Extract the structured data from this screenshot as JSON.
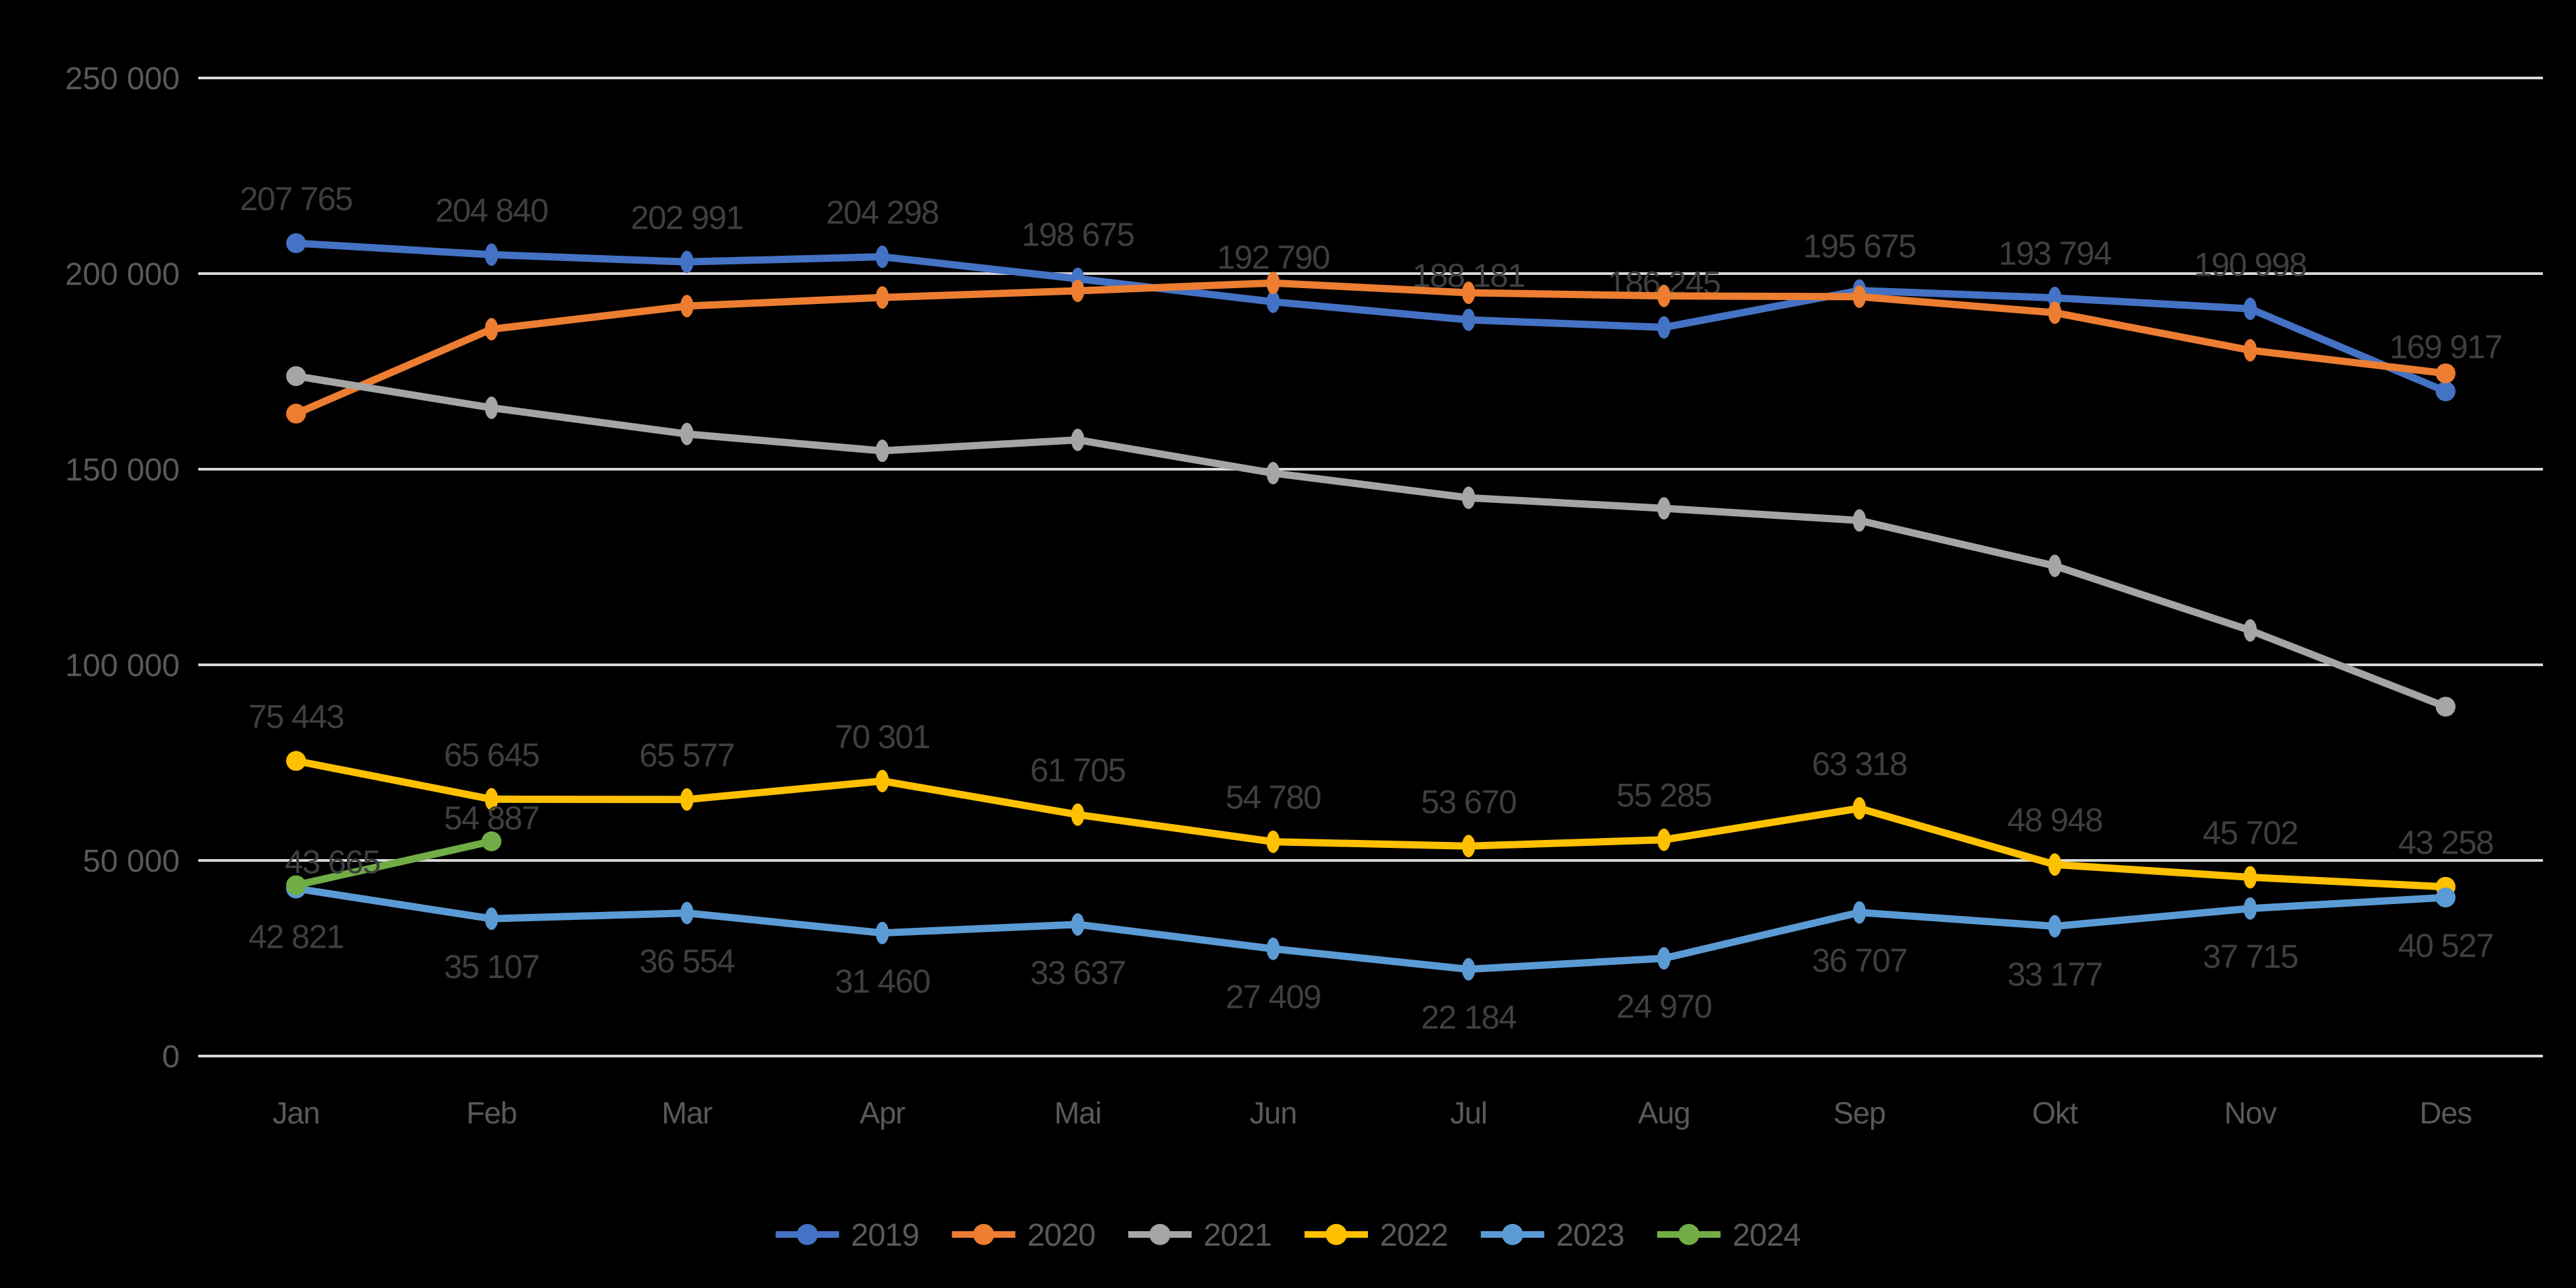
{
  "page": {
    "background_color": "#000000"
  },
  "chart_data": {
    "type": "line",
    "categories": [
      "Jan",
      "Feb",
      "Mar",
      "Apr",
      "Mai",
      "Jun",
      "Jul",
      "Aug",
      "Sep",
      "Okt",
      "Nov",
      "Des"
    ],
    "y_axis": {
      "min": 0,
      "max": 250000,
      "step": 50000,
      "tick_labels": [
        "0",
        "50 000",
        "100 000",
        "150 000",
        "200 000",
        "250 000"
      ]
    },
    "grid": true,
    "legend": {
      "position": "bottom",
      "items": [
        "2019",
        "2020",
        "2021",
        "2022",
        "2023",
        "2024"
      ]
    },
    "series": [
      {
        "name": "2019",
        "color": "#4472C4",
        "labels_visible": true,
        "label_placement": "above",
        "values": [
          207765,
          204840,
          202991,
          204298,
          198675,
          192790,
          188181,
          186245,
          195675,
          193794,
          190998,
          169917
        ]
      },
      {
        "name": "2020",
        "color": "#ED7D31",
        "labels_visible": false,
        "label_placement": "none",
        "values_estimated_from_pixels": true,
        "values": [
          164200,
          185800,
          191700,
          193900,
          195600,
          197600,
          195100,
          194300,
          194100,
          190000,
          180400,
          174500
        ]
      },
      {
        "name": "2021",
        "color": "#A5A5A5",
        "labels_visible": false,
        "label_placement": "none",
        "values_estimated_from_pixels": true,
        "values": [
          173800,
          165700,
          159000,
          154700,
          157500,
          149000,
          142700,
          140000,
          136900,
          125300,
          108800,
          89300
        ]
      },
      {
        "name": "2022",
        "color": "#FFC000",
        "labels_visible": true,
        "label_placement": "above",
        "values": [
          75443,
          65645,
          65577,
          70301,
          61705,
          54780,
          53670,
          55285,
          63318,
          48948,
          45702,
          43258
        ]
      },
      {
        "name": "2023",
        "color": "#5B9BD5",
        "labels_visible": true,
        "label_placement": "below",
        "values": [
          42821,
          35107,
          36554,
          31460,
          33637,
          27409,
          22184,
          24970,
          36707,
          33177,
          37715,
          40527
        ]
      },
      {
        "name": "2024",
        "color": "#70AD47",
        "labels_visible": true,
        "label_placement": "tight-above",
        "values": [
          43665,
          54887,
          null,
          null,
          null,
          null,
          null,
          null,
          null,
          null,
          null,
          null
        ]
      }
    ],
    "styles": {
      "gridline_color": "#D9D9D9",
      "axis_text_color": "#595959",
      "data_label_color": "#3F3F3F",
      "legend_text_color": "#595959"
    }
  }
}
